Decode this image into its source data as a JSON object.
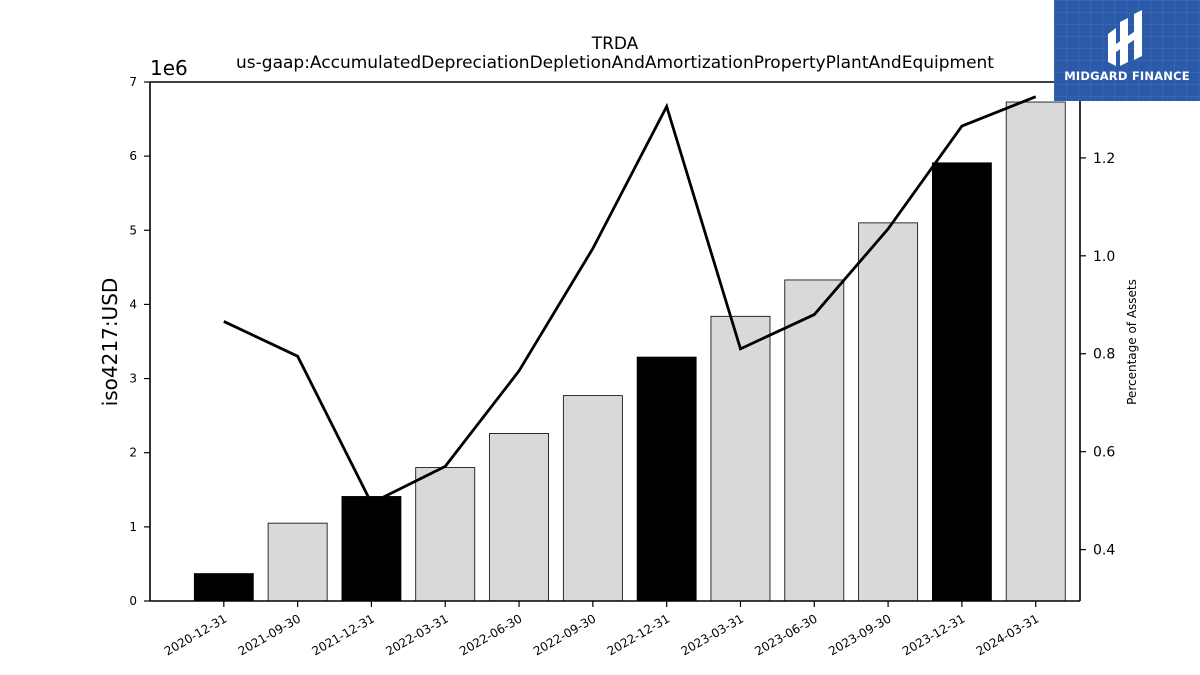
{
  "logo": {
    "brand_text": "MIDGARD FINANCE",
    "icon": "midgard-logo-icon",
    "background": "#2b5aab"
  },
  "chart_data": {
    "type": "bar",
    "title": "TRDA",
    "subtitle": "us-gaap:AccumulatedDepreciationDepletionAndAmortizationPropertyPlantAndEquipment",
    "ylabel": "iso4217:USD",
    "y_offset_label": "1e6",
    "y2label": "Percentage of Assets",
    "ylim": [
      0,
      7000000
    ],
    "y2lim": [
      0.295,
      1.355
    ],
    "yticks": [
      0,
      1000000,
      2000000,
      3000000,
      4000000,
      5000000,
      6000000,
      7000000
    ],
    "ytick_labels": [
      "0",
      "1",
      "2",
      "3",
      "4",
      "5",
      "6",
      "7"
    ],
    "y2ticks": [
      0.4,
      0.6,
      0.8,
      1.0,
      1.2
    ],
    "y2tick_labels": [
      "0.4",
      "0.6",
      "0.8",
      "1.0",
      "1.2"
    ],
    "categories": [
      "2020-12-31",
      "2021-09-30",
      "2021-12-31",
      "2022-03-31",
      "2022-06-30",
      "2022-09-30",
      "2022-12-31",
      "2023-03-31",
      "2023-06-30",
      "2023-09-30",
      "2023-12-31",
      "2024-03-31"
    ],
    "values": [
      370000,
      1050000,
      1410000,
      1800000,
      2260000,
      2770000,
      3290000,
      3840000,
      4330000,
      5100000,
      5910000,
      6730000
    ],
    "bar_colors": [
      "#000000",
      "#d9d9d9",
      "#000000",
      "#d9d9d9",
      "#d9d9d9",
      "#d9d9d9",
      "#000000",
      "#d9d9d9",
      "#d9d9d9",
      "#d9d9d9",
      "#000000",
      "#d9d9d9"
    ],
    "line_values": [
      0.866,
      0.795,
      0.495,
      0.57,
      0.765,
      1.015,
      1.305,
      0.81,
      0.88,
      1.055,
      1.265,
      1.325
    ],
    "line_color": "#000000",
    "grid": false
  }
}
